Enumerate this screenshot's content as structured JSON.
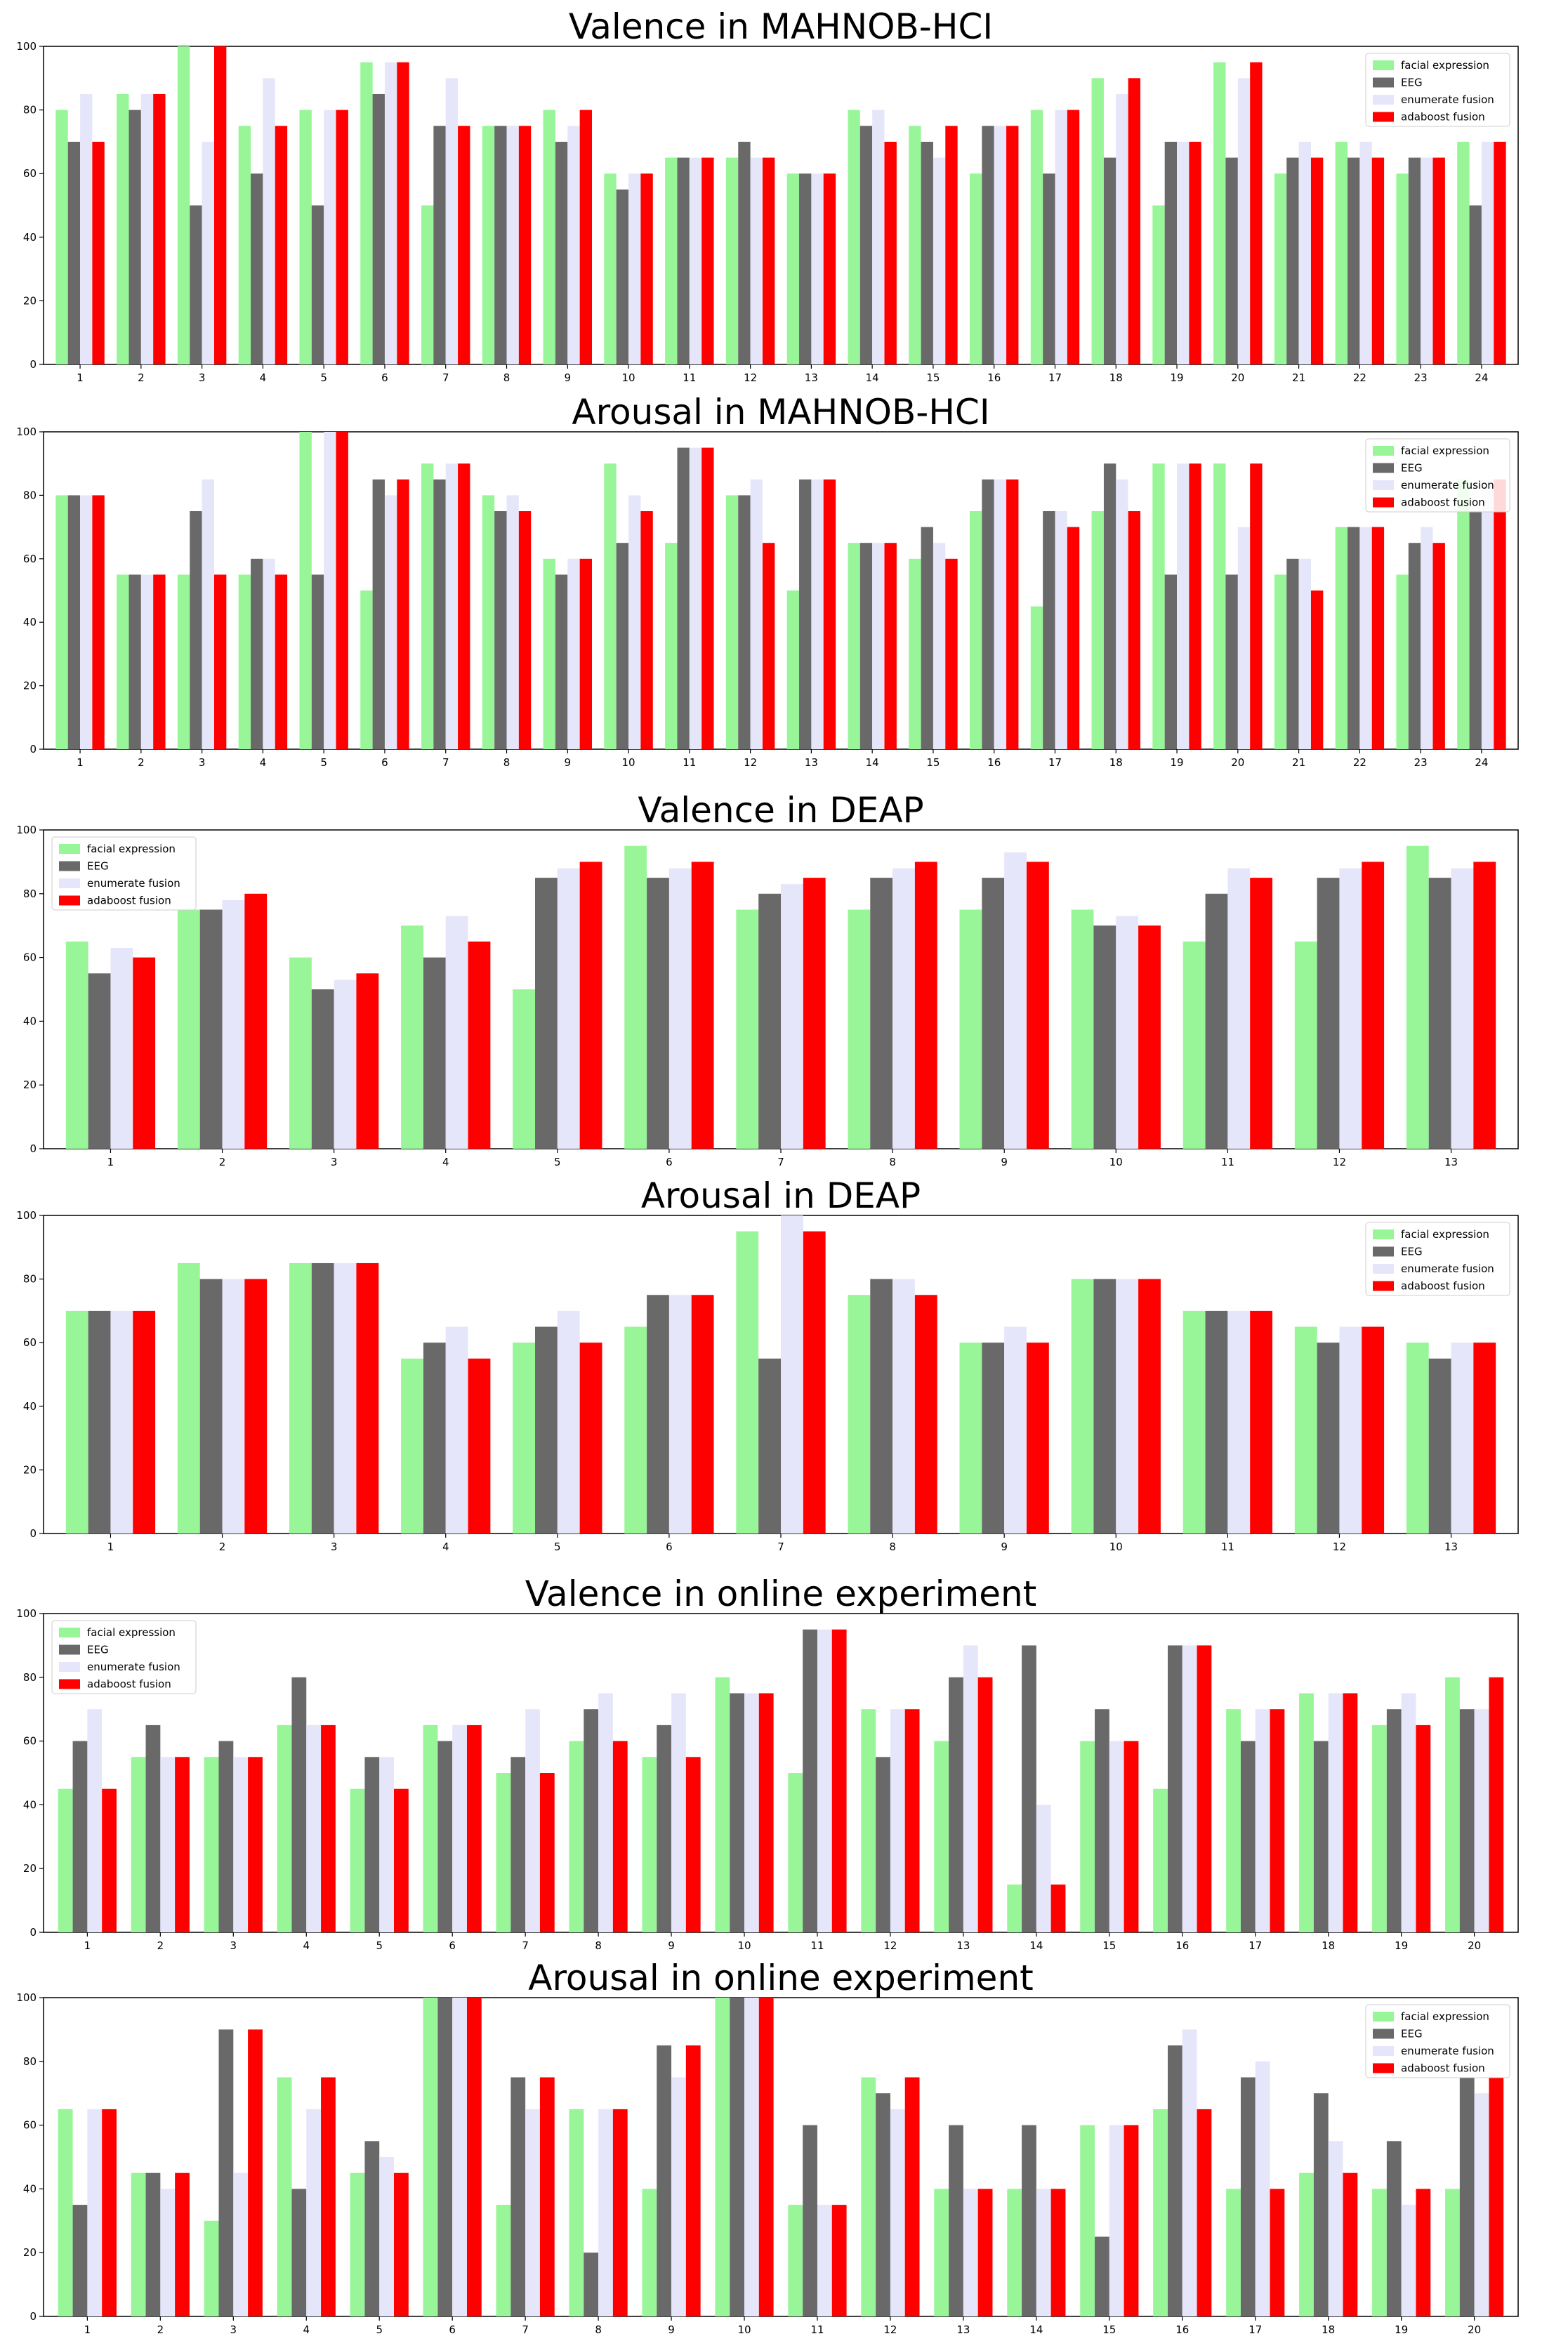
{
  "chart_data": [
    {
      "type": "bar",
      "title": "Valence in MAHNOB-HCI",
      "xlabel": "",
      "ylabel": "",
      "ylim": [
        0,
        100
      ],
      "yticks": [
        0,
        20,
        40,
        60,
        80,
        100
      ],
      "categories": [
        "1",
        "2",
        "3",
        "4",
        "5",
        "6",
        "7",
        "8",
        "9",
        "10",
        "11",
        "12",
        "13",
        "14",
        "15",
        "16",
        "17",
        "18",
        "19",
        "20",
        "21",
        "22",
        "23",
        "24"
      ],
      "legend_position": "top-right",
      "series": [
        {
          "name": "facial expression",
          "color": "#98f598",
          "values": [
            80,
            85,
            100,
            75,
            80,
            95,
            50,
            75,
            80,
            60,
            65,
            65,
            60,
            80,
            75,
            60,
            80,
            90,
            50,
            95,
            60,
            70,
            60,
            70
          ]
        },
        {
          "name": "EEG",
          "color": "#696969",
          "values": [
            70,
            80,
            50,
            60,
            50,
            85,
            75,
            75,
            70,
            55,
            65,
            70,
            60,
            75,
            70,
            75,
            60,
            65,
            70,
            65,
            65,
            65,
            65,
            50
          ]
        },
        {
          "name": "enumerate fusion",
          "color": "#e6e6fa",
          "values": [
            85,
            85,
            70,
            90,
            80,
            95,
            90,
            75,
            75,
            60,
            65,
            65,
            60,
            80,
            65,
            75,
            80,
            85,
            70,
            90,
            70,
            70,
            65,
            70
          ]
        },
        {
          "name": "adaboost fusion",
          "color": "#ff0000",
          "values": [
            70,
            85,
            100,
            75,
            80,
            95,
            75,
            75,
            80,
            60,
            65,
            65,
            60,
            70,
            75,
            75,
            80,
            90,
            70,
            95,
            65,
            65,
            65,
            70
          ]
        }
      ]
    },
    {
      "type": "bar",
      "title": "Arousal in MAHNOB-HCI",
      "xlabel": "",
      "ylabel": "",
      "ylim": [
        0,
        100
      ],
      "yticks": [
        0,
        20,
        40,
        60,
        80,
        100
      ],
      "categories": [
        "1",
        "2",
        "3",
        "4",
        "5",
        "6",
        "7",
        "8",
        "9",
        "10",
        "11",
        "12",
        "13",
        "14",
        "15",
        "16",
        "17",
        "18",
        "19",
        "20",
        "21",
        "22",
        "23",
        "24"
      ],
      "legend_position": "top-right",
      "series": [
        {
          "name": "facial expression",
          "color": "#98f598",
          "values": [
            80,
            55,
            55,
            55,
            100,
            50,
            90,
            80,
            60,
            90,
            65,
            80,
            50,
            65,
            60,
            75,
            45,
            75,
            90,
            90,
            55,
            70,
            55,
            85
          ]
        },
        {
          "name": "EEG",
          "color": "#696969",
          "values": [
            80,
            55,
            75,
            60,
            55,
            85,
            85,
            75,
            55,
            65,
            95,
            80,
            85,
            65,
            70,
            85,
            75,
            90,
            55,
            55,
            60,
            70,
            65,
            75
          ]
        },
        {
          "name": "enumerate fusion",
          "color": "#e6e6fa",
          "values": [
            80,
            55,
            85,
            60,
            100,
            80,
            90,
            80,
            60,
            80,
            95,
            85,
            85,
            65,
            65,
            85,
            75,
            85,
            90,
            70,
            60,
            70,
            70,
            85
          ]
        },
        {
          "name": "adaboost fusion",
          "color": "#ff0000",
          "values": [
            80,
            55,
            55,
            55,
            100,
            85,
            90,
            75,
            60,
            75,
            95,
            65,
            85,
            65,
            60,
            85,
            70,
            75,
            90,
            90,
            50,
            70,
            65,
            85
          ]
        }
      ]
    },
    {
      "type": "bar",
      "title": "Valence in DEAP",
      "xlabel": "",
      "ylabel": "",
      "ylim": [
        0,
        100
      ],
      "yticks": [
        0,
        20,
        40,
        60,
        80,
        100
      ],
      "categories": [
        "1",
        "2",
        "3",
        "4",
        "5",
        "6",
        "7",
        "8",
        "9",
        "10",
        "11",
        "12",
        "13"
      ],
      "legend_position": "top-left",
      "series": [
        {
          "name": "facial expression",
          "color": "#98f598",
          "values": [
            65,
            75,
            60,
            70,
            50,
            95,
            75,
            75,
            75,
            75,
            65,
            65,
            95
          ]
        },
        {
          "name": "EEG",
          "color": "#696969",
          "values": [
            55,
            75,
            50,
            60,
            85,
            85,
            80,
            85,
            85,
            70,
            80,
            85,
            85
          ]
        },
        {
          "name": "enumerate fusion",
          "color": "#e6e6fa",
          "values": [
            63,
            78,
            53,
            73,
            88,
            88,
            83,
            88,
            93,
            73,
            88,
            88,
            88
          ]
        },
        {
          "name": "adaboost fusion",
          "color": "#ff0000",
          "values": [
            60,
            80,
            55,
            65,
            90,
            90,
            85,
            90,
            90,
            70,
            85,
            90,
            90
          ]
        }
      ]
    },
    {
      "type": "bar",
      "title": "Arousal in DEAP",
      "xlabel": "",
      "ylabel": "",
      "ylim": [
        0,
        100
      ],
      "yticks": [
        0,
        20,
        40,
        60,
        80,
        100
      ],
      "categories": [
        "1",
        "2",
        "3",
        "4",
        "5",
        "6",
        "7",
        "8",
        "9",
        "10",
        "11",
        "12",
        "13"
      ],
      "legend_position": "top-right",
      "series": [
        {
          "name": "facial expression",
          "color": "#98f598",
          "values": [
            70,
            85,
            85,
            55,
            60,
            65,
            95,
            75,
            60,
            80,
            70,
            65,
            60
          ]
        },
        {
          "name": "EEG",
          "color": "#696969",
          "values": [
            70,
            80,
            85,
            60,
            65,
            75,
            55,
            80,
            60,
            80,
            70,
            60,
            55
          ]
        },
        {
          "name": "enumerate fusion",
          "color": "#e6e6fa",
          "values": [
            70,
            80,
            85,
            65,
            70,
            75,
            100,
            80,
            65,
            80,
            70,
            65,
            60
          ]
        },
        {
          "name": "adaboost fusion",
          "color": "#ff0000",
          "values": [
            70,
            80,
            85,
            55,
            60,
            75,
            95,
            75,
            60,
            80,
            70,
            65,
            60
          ]
        }
      ]
    },
    {
      "type": "bar",
      "title": "Valence in online experiment",
      "xlabel": "",
      "ylabel": "",
      "ylim": [
        0,
        100
      ],
      "yticks": [
        0,
        20,
        40,
        60,
        80,
        100
      ],
      "categories": [
        "1",
        "2",
        "3",
        "4",
        "5",
        "6",
        "7",
        "8",
        "9",
        "10",
        "11",
        "12",
        "13",
        "14",
        "15",
        "16",
        "17",
        "18",
        "19",
        "20"
      ],
      "legend_position": "top-left",
      "series": [
        {
          "name": "facial expression",
          "color": "#98f598",
          "values": [
            45,
            55,
            55,
            65,
            45,
            65,
            50,
            60,
            55,
            80,
            50,
            70,
            60,
            15,
            60,
            45,
            70,
            75,
            65,
            80
          ]
        },
        {
          "name": "EEG",
          "color": "#696969",
          "values": [
            60,
            65,
            60,
            80,
            55,
            60,
            55,
            70,
            65,
            75,
            95,
            55,
            80,
            90,
            70,
            90,
            60,
            60,
            70,
            70
          ]
        },
        {
          "name": "enumerate fusion",
          "color": "#e6e6fa",
          "values": [
            70,
            55,
            55,
            65,
            55,
            65,
            70,
            75,
            75,
            75,
            95,
            70,
            90,
            40,
            60,
            90,
            70,
            75,
            75,
            70
          ]
        },
        {
          "name": "adaboost fusion",
          "color": "#ff0000",
          "values": [
            45,
            55,
            55,
            65,
            45,
            65,
            50,
            60,
            55,
            75,
            95,
            70,
            80,
            15,
            60,
            90,
            70,
            75,
            65,
            80
          ]
        }
      ]
    },
    {
      "type": "bar",
      "title": "Arousal in online experiment",
      "xlabel": "",
      "ylabel": "",
      "ylim": [
        0,
        100
      ],
      "yticks": [
        0,
        20,
        40,
        60,
        80,
        100
      ],
      "categories": [
        "1",
        "2",
        "3",
        "4",
        "5",
        "6",
        "7",
        "8",
        "9",
        "10",
        "11",
        "12",
        "13",
        "14",
        "15",
        "16",
        "17",
        "18",
        "19",
        "20"
      ],
      "legend_position": "top-right",
      "series": [
        {
          "name": "facial expression",
          "color": "#98f598",
          "values": [
            65,
            45,
            30,
            75,
            45,
            100,
            35,
            65,
            40,
            100,
            35,
            75,
            40,
            40,
            60,
            65,
            40,
            45,
            40,
            40
          ]
        },
        {
          "name": "EEG",
          "color": "#696969",
          "values": [
            35,
            45,
            90,
            40,
            55,
            100,
            75,
            20,
            85,
            100,
            60,
            70,
            60,
            60,
            25,
            85,
            75,
            70,
            55,
            75
          ]
        },
        {
          "name": "enumerate fusion",
          "color": "#e6e6fa",
          "values": [
            65,
            40,
            45,
            65,
            50,
            100,
            65,
            65,
            75,
            100,
            35,
            65,
            40,
            40,
            60,
            90,
            80,
            55,
            35,
            70
          ]
        },
        {
          "name": "adaboost fusion",
          "color": "#ff0000",
          "values": [
            65,
            45,
            90,
            75,
            45,
            100,
            75,
            65,
            85,
            100,
            35,
            75,
            40,
            40,
            60,
            65,
            40,
            45,
            40,
            75
          ]
        }
      ]
    }
  ]
}
